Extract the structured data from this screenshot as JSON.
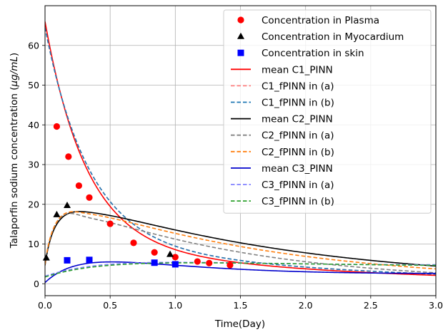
{
  "chart_data": {
    "type": "line",
    "title": "",
    "xlabel": "Time(Day)",
    "ylabel_prefix": "Talaporfin sodium concentration (",
    "ylabel_unit": "μg/mL",
    "ylabel_suffix": ")",
    "xlim": [
      0,
      3
    ],
    "ylim": [
      -3,
      70
    ],
    "xticks": [
      0,
      0.5,
      1,
      1.5,
      2,
      2.5,
      3
    ],
    "xtick_labels": [
      "0.0",
      "0.5",
      "1.0",
      "1.5",
      "2.0",
      "2.5",
      "3.0"
    ],
    "yticks": [
      0,
      10,
      20,
      30,
      40,
      50,
      60
    ],
    "ytick_labels": [
      "0",
      "10",
      "20",
      "30",
      "40",
      "50",
      "60"
    ],
    "grid": true,
    "legend_position": "top-right",
    "scatter_series": [
      {
        "name": "Concentration in Plasma",
        "marker": "circle",
        "color": "#ff0000",
        "x": [
          0.09,
          0.18,
          0.26,
          0.34,
          0.5,
          0.68,
          0.84,
          1.0,
          1.17,
          1.26,
          1.42
        ],
        "y": [
          39.6,
          32.0,
          24.7,
          21.7,
          15.1,
          10.3,
          7.9,
          6.7,
          5.6,
          5.2,
          4.7
        ]
      },
      {
        "name": "Concentration in Myocardium",
        "marker": "triangle",
        "color": "#000000",
        "x": [
          0.01,
          0.09,
          0.17,
          0.96
        ],
        "y": [
          6.5,
          17.4,
          19.7,
          7.4
        ]
      },
      {
        "name": "Concentration in skin",
        "marker": "square",
        "color": "#0000ff",
        "x": [
          0.17,
          0.34,
          0.84,
          1.0
        ],
        "y": [
          5.9,
          6.0,
          5.3,
          4.9
        ]
      }
    ],
    "line_series": [
      {
        "name": "mean C1_PINN",
        "color": "#ff0000",
        "dash": false,
        "alpha": 1,
        "curve": "c1_mean"
      },
      {
        "name": "C1_fPINN in (a)",
        "color": "#ff8080",
        "dash": true,
        "alpha": 1,
        "curve": "c1_a"
      },
      {
        "name": "C1_fPINN in (b)",
        "color": "#1f77b4",
        "dash": true,
        "alpha": 1,
        "curve": "c1_b"
      },
      {
        "name": "mean C2_PINN",
        "color": "#000000",
        "dash": false,
        "alpha": 1,
        "curve": "c2_mean"
      },
      {
        "name": "C2_fPINN in (a)",
        "color": "#808080",
        "dash": true,
        "alpha": 1,
        "curve": "c2_a"
      },
      {
        "name": "C2_fPINN in (b)",
        "color": "#ff7f0e",
        "dash": true,
        "alpha": 1,
        "curve": "c2_b"
      },
      {
        "name": "mean C3_PINN",
        "color": "#0000cc",
        "dash": false,
        "alpha": 1,
        "curve": "c3_mean"
      },
      {
        "name": "C3_fPINN in (a)",
        "color": "#8080ff",
        "dash": true,
        "alpha": 1,
        "curve": "c3_a"
      },
      {
        "name": "C3_fPINN in (b)",
        "color": "#2ca02c",
        "dash": true,
        "alpha": 1,
        "curve": "c3_b"
      }
    ]
  }
}
